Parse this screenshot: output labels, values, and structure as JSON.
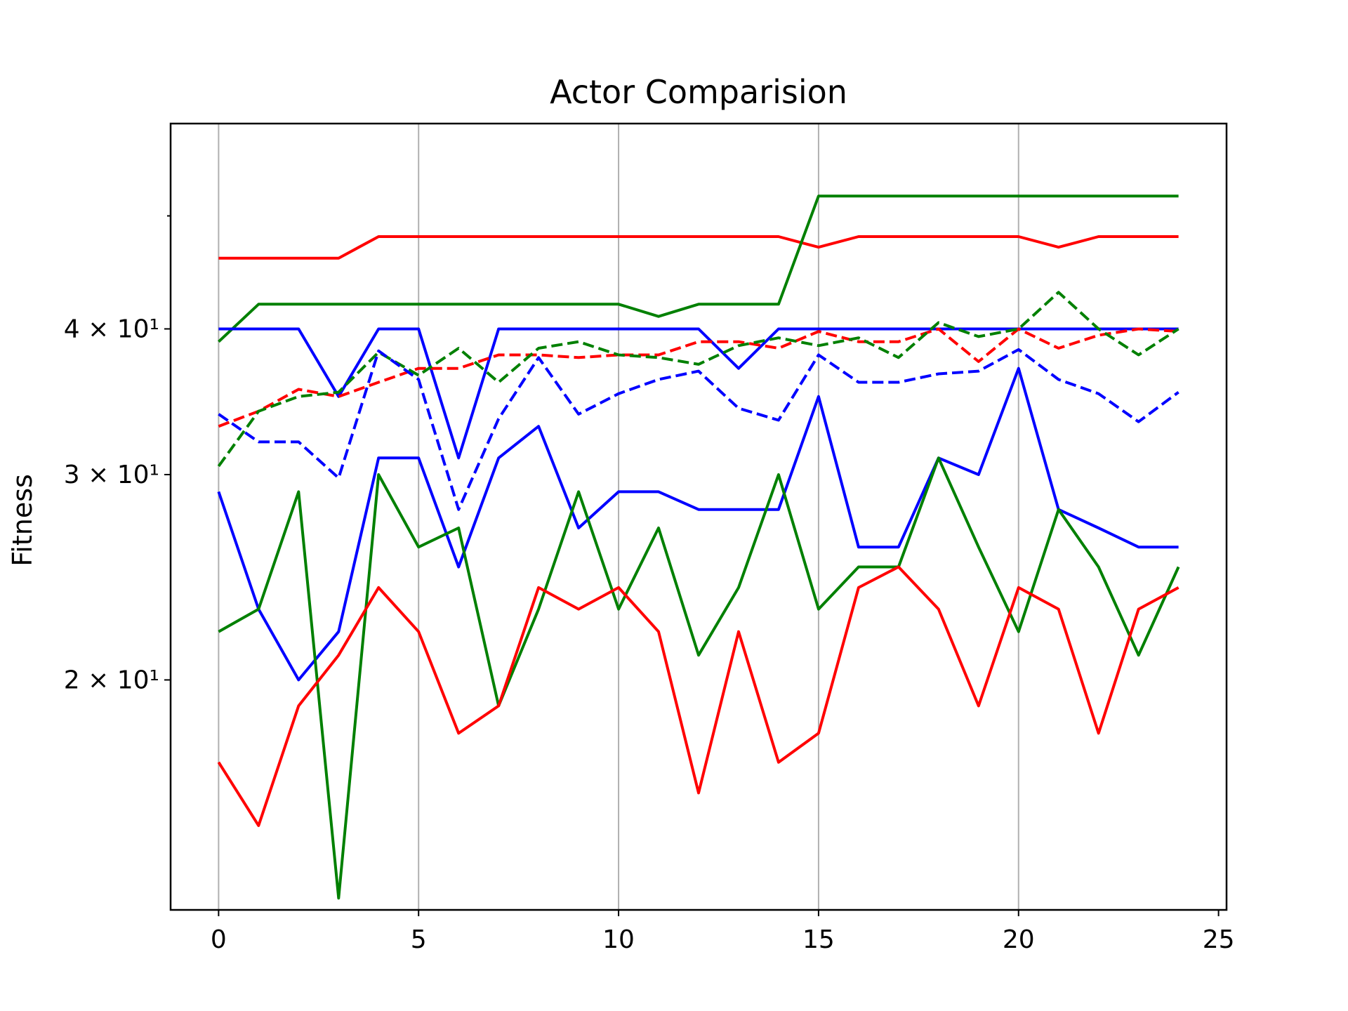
{
  "chart_data": {
    "type": "line",
    "title": "Actor Comparision",
    "xlabel": "",
    "ylabel": "Fitness",
    "yscale": "log",
    "xlim": [
      -1.2,
      25.2
    ],
    "ylim": [
      12.7,
      60
    ],
    "xticks": [
      0,
      5,
      10,
      15,
      20,
      25
    ],
    "xtick_labels": [
      "0",
      "5",
      "10",
      "15",
      "20",
      "25"
    ],
    "yticks": [
      20,
      30,
      40
    ],
    "ytick_labels": [
      "2 × 10¹",
      "3 × 10¹",
      "4 × 10¹"
    ],
    "y_minor_ticks": [
      50
    ],
    "grid": "x-major",
    "legend": "none",
    "x": [
      0,
      1,
      2,
      3,
      4,
      5,
      6,
      7,
      8,
      9,
      10,
      11,
      12,
      13,
      14,
      15,
      16,
      17,
      18,
      19,
      20,
      21,
      22,
      23,
      24
    ],
    "series": [
      {
        "color": "#ff0000",
        "dash": "solid",
        "values": [
          46,
          46,
          46,
          46,
          48,
          48,
          48,
          48,
          48,
          48,
          48,
          48,
          48,
          48,
          48,
          47,
          48,
          48,
          48,
          48,
          48,
          47,
          48,
          48,
          48
        ]
      },
      {
        "color": "#008000",
        "dash": "solid",
        "values": [
          39,
          42,
          42,
          42,
          42,
          42,
          42,
          42,
          42,
          42,
          42,
          41,
          42,
          42,
          42,
          52,
          52,
          52,
          52,
          52,
          52,
          52,
          52,
          52,
          52
        ]
      },
      {
        "color": "#0000ff",
        "dash": "solid",
        "values": [
          40,
          40,
          40,
          35,
          40,
          40,
          31,
          40,
          40,
          40,
          40,
          40,
          40,
          37,
          40,
          40,
          40,
          40,
          40,
          40,
          40,
          40,
          40,
          40,
          40
        ]
      },
      {
        "color": "#ff0000",
        "dash": "dashed",
        "values": [
          33,
          34,
          35.5,
          35,
          36,
          37,
          37,
          38,
          38,
          37.8,
          38,
          38,
          39,
          39,
          38.5,
          39.8,
          39,
          39,
          40,
          37.5,
          40,
          38.5,
          39.5,
          40,
          39.8
        ]
      },
      {
        "color": "#008000",
        "dash": "dashed",
        "values": [
          30.5,
          34,
          35,
          35.3,
          38.2,
          36.5,
          38.5,
          36,
          38.5,
          39,
          38,
          37.8,
          37.3,
          38.7,
          39.3,
          38.7,
          39.3,
          37.8,
          40.5,
          39.4,
          40,
          43,
          40,
          38,
          40
        ]
      },
      {
        "color": "#0000ff",
        "dash": "dashed",
        "values": [
          33.8,
          32,
          32,
          29.8,
          38.3,
          36.2,
          28,
          33.5,
          37.8,
          33.8,
          35.2,
          36.2,
          36.8,
          34.2,
          33.4,
          38,
          36,
          36,
          36.6,
          36.8,
          38.4,
          36.2,
          35.2,
          33.3,
          35.3
        ]
      },
      {
        "color": "#0000ff",
        "dash": "solid",
        "values": [
          29,
          23,
          20,
          22,
          31,
          31,
          25,
          31,
          33,
          27,
          29,
          29,
          28,
          28,
          28,
          35,
          26,
          26,
          31,
          30,
          37,
          28,
          27,
          26,
          26
        ]
      },
      {
        "color": "#008000",
        "dash": "solid",
        "values": [
          22,
          23,
          29,
          13,
          30,
          26,
          27,
          19,
          23,
          29,
          23,
          27,
          21,
          24,
          30,
          23,
          25,
          25,
          31,
          26,
          22,
          28,
          25,
          21,
          25
        ]
      },
      {
        "color": "#ff0000",
        "dash": "solid",
        "values": [
          17,
          15,
          19,
          21,
          24,
          22,
          18,
          19,
          24,
          23,
          24,
          22,
          16,
          22,
          17,
          18,
          24,
          25,
          23,
          19,
          24,
          23,
          18,
          23,
          24
        ]
      }
    ]
  }
}
